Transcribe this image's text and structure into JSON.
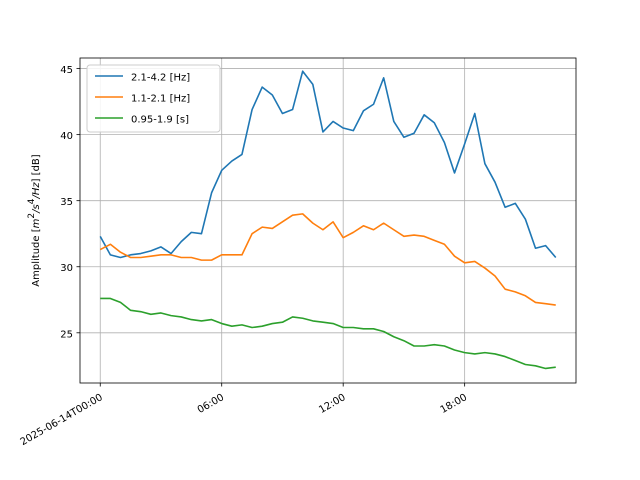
{
  "chart_data": {
    "type": "line",
    "title": "",
    "xlabel": "",
    "ylabel_main": "Amplitude [",
    "ylabel_m": "m",
    "ylabel_sup1": "2",
    "ylabel_mid": "/s",
    "ylabel_sup2": "4",
    "ylabel_tail": "/Hz",
    "ylabel_unit": "] [dB]",
    "x_unit": "hours from 2025-06-14T00:00",
    "xlim": [
      -1,
      23.5
    ],
    "ylim": [
      21.2,
      45.8
    ],
    "grid": true,
    "legend_position": "top-left",
    "x_ticks": [
      {
        "value": 0,
        "label": "2025-06-14T00:00"
      },
      {
        "value": 6,
        "label": "06:00"
      },
      {
        "value": 12,
        "label": "12:00"
      },
      {
        "value": 18,
        "label": "18:00"
      }
    ],
    "y_ticks": [
      {
        "value": 25,
        "label": "25"
      },
      {
        "value": 30,
        "label": "30"
      },
      {
        "value": 35,
        "label": "35"
      },
      {
        "value": 40,
        "label": "40"
      },
      {
        "value": 45,
        "label": "45"
      }
    ],
    "x": [
      0,
      0.5,
      1,
      1.5,
      2,
      2.5,
      3,
      3.5,
      4,
      4.5,
      5,
      5.5,
      6,
      6.5,
      7,
      7.5,
      8,
      8.5,
      9,
      9.5,
      10,
      10.5,
      11,
      11.5,
      12,
      12.5,
      13,
      13.5,
      14,
      14.5,
      15,
      15.5,
      16,
      16.5,
      17,
      17.5,
      18,
      18.5,
      19,
      19.5,
      20,
      20.5,
      21,
      21.5,
      22,
      22.5
    ],
    "series": [
      {
        "name": "2.1-4.2 [Hz]",
        "color": "#1f77b4",
        "values": [
          32.3,
          30.9,
          30.7,
          30.9,
          31.0,
          31.2,
          31.5,
          31.0,
          31.9,
          32.6,
          32.5,
          35.6,
          37.3,
          38.0,
          38.5,
          41.9,
          43.6,
          43.0,
          41.6,
          41.9,
          44.8,
          43.8,
          40.2,
          41.0,
          40.5,
          40.3,
          41.8,
          42.3,
          44.3,
          41.0,
          39.8,
          40.1,
          41.5,
          40.9,
          39.4,
          37.1,
          39.3,
          41.6,
          37.8,
          36.4,
          34.5,
          34.8,
          33.6,
          31.4,
          31.6,
          30.7
        ]
      },
      {
        "name": "1.1-2.1 [Hz]",
        "color": "#ff7f0e",
        "values": [
          31.3,
          31.7,
          31.1,
          30.7,
          30.7,
          30.8,
          30.9,
          30.9,
          30.7,
          30.7,
          30.5,
          30.5,
          30.9,
          30.9,
          30.9,
          32.5,
          33.0,
          32.9,
          33.4,
          33.9,
          34.0,
          33.3,
          32.8,
          33.4,
          32.2,
          32.6,
          33.1,
          32.8,
          33.3,
          32.8,
          32.3,
          32.4,
          32.3,
          32.0,
          31.7,
          30.8,
          30.3,
          30.4,
          29.9,
          29.3,
          28.3,
          28.1,
          27.8,
          27.3,
          27.2,
          27.1
        ]
      },
      {
        "name": "0.95-1.9 [s]",
        "color": "#2ca02c",
        "values": [
          27.6,
          27.6,
          27.3,
          26.7,
          26.6,
          26.4,
          26.5,
          26.3,
          26.2,
          26.0,
          25.9,
          26.0,
          25.7,
          25.5,
          25.6,
          25.4,
          25.5,
          25.7,
          25.8,
          26.2,
          26.1,
          25.9,
          25.8,
          25.7,
          25.4,
          25.4,
          25.3,
          25.3,
          25.1,
          24.7,
          24.4,
          24.0,
          24.0,
          24.1,
          24.0,
          23.7,
          23.5,
          23.4,
          23.5,
          23.4,
          23.2,
          22.9,
          22.6,
          22.5,
          22.3,
          22.4
        ]
      }
    ]
  }
}
